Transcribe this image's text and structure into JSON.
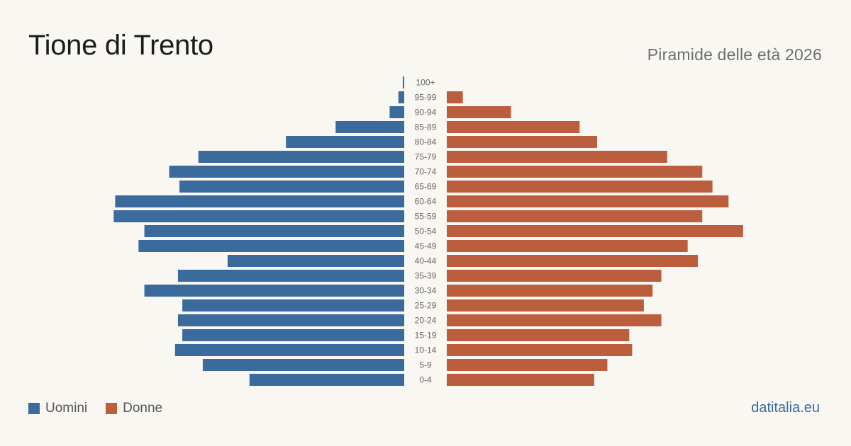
{
  "title": "Tione di Trento",
  "subtitle": "Piramide delle età 2026",
  "source": "datitalia.eu",
  "colors": {
    "background": "#f9f7f2",
    "men": "#3b6a9c",
    "women": "#bb5e3d",
    "tick_label": "#666666"
  },
  "chart_data": {
    "type": "bar",
    "orientation": "horizontal",
    "layout": "population-pyramid",
    "categories": [
      "100+",
      "95-99",
      "90-94",
      "85-89",
      "80-84",
      "75-79",
      "70-74",
      "65-69",
      "60-64",
      "55-59",
      "50-54",
      "45-49",
      "40-44",
      "35-39",
      "30-34",
      "25-29",
      "20-24",
      "15-19",
      "10-14",
      "5-9",
      "0-4"
    ],
    "series": [
      {
        "name": "Uomini",
        "values": [
          1,
          4,
          10,
          47,
          81,
          141,
          161,
          154,
          198,
          199,
          178,
          182,
          121,
          155,
          178,
          152,
          155,
          152,
          157,
          138,
          106
        ]
      },
      {
        "name": "Donne",
        "values": [
          0,
          11,
          44,
          91,
          103,
          151,
          175,
          182,
          193,
          175,
          203,
          165,
          172,
          147,
          141,
          135,
          147,
          125,
          127,
          110,
          101
        ]
      }
    ],
    "xlim": [
      0,
      205
    ],
    "grid": false,
    "legend_position": "bottom-left"
  },
  "legend": [
    {
      "label": "Uomini",
      "color": "#3b6a9c"
    },
    {
      "label": "Donne",
      "color": "#bb5e3d"
    }
  ]
}
